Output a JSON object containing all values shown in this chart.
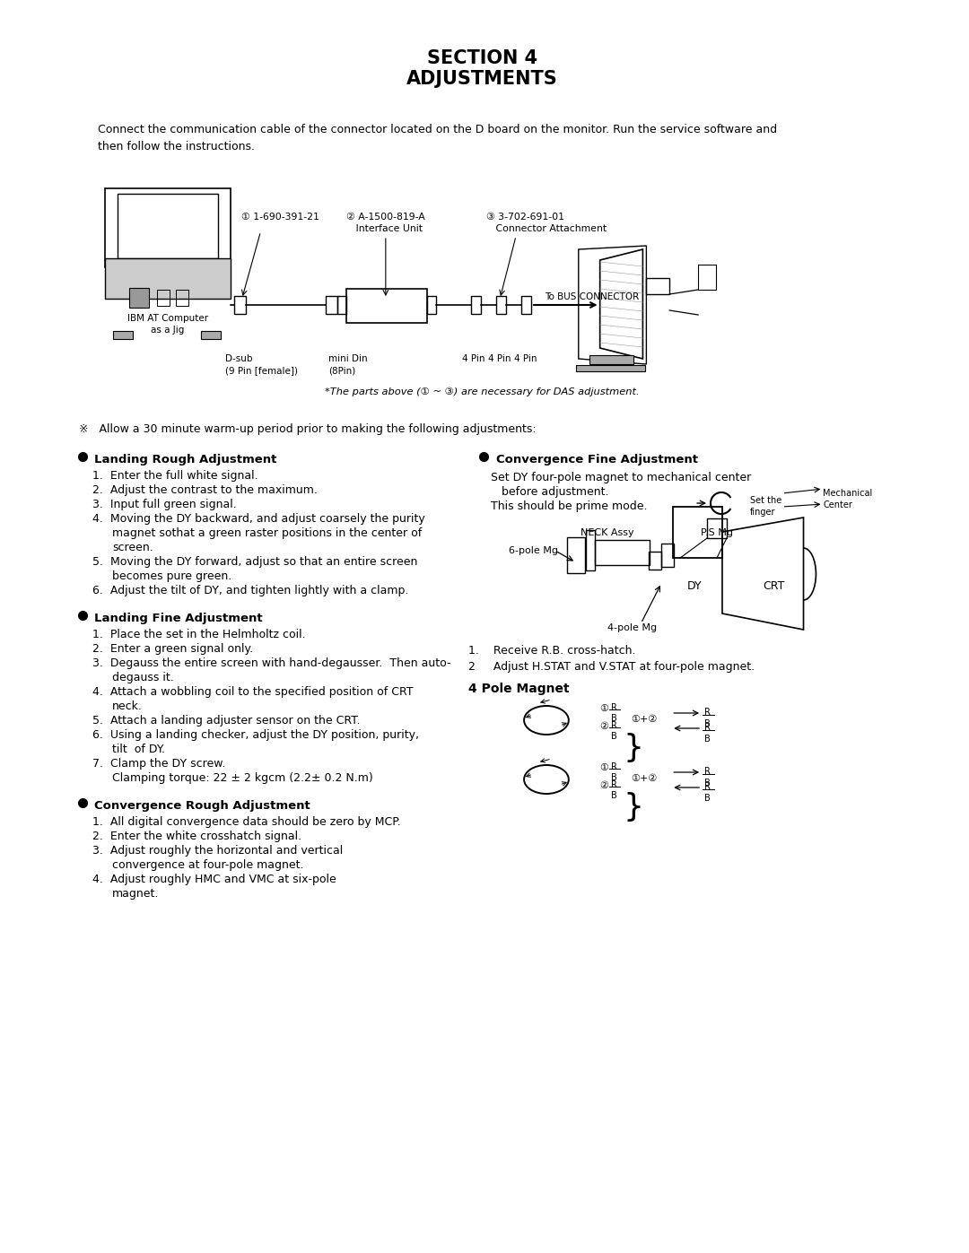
{
  "title_line1": "SECTION 4",
  "title_line2": "ADJUSTMENTS",
  "bg_color": "#ffffff",
  "intro_text": "Connect the communication cable of the connector located on the D board on the monitor. Run the service software and\nthen follow the instructions.",
  "parts_note": "*The parts above (① ~ ③) are necessary for DAS adjustment.",
  "warmup_note": "※   Allow a 30 minute warm-up period prior to making the following adjustments:",
  "section1_title": "Landing Rough Adjustment",
  "section1_items": [
    "Enter the full white signal.",
    "Adjust the contrast to the maximum.",
    "Input full green signal.",
    "Moving the DY backward, and adjust coarsely the purity\n    magnet sothat a green raster positions in the center of\n    screen.",
    "Moving the DY forward, adjust so that an entire screen\n    becomes pure green.",
    "Adjust the tilt of DY, and tighten lightly with a clamp."
  ],
  "section2_title": "Landing Fine Adjustment",
  "section2_items": [
    "Place the set in the Helmholtz coil.",
    "Enter a green signal only.",
    "Degauss the entire screen with hand-degausser.  Then auto-\n    degauss it.",
    "Attach a wobbling coil to the specified position of CRT\n    neck.",
    "Attach a landing adjuster sensor on the CRT.",
    "Using a landing checker, adjust the DY position, purity,\n    tilt  of DY.",
    "Clamp the DY screw.\n    Clamping torque: 22 ± 2 kgcm (2.2± 0.2 N.m)"
  ],
  "section3_title": "Convergence Rough Adjustment",
  "section3_items": [
    "All digital convergence data should be zero by MCP.",
    "Enter the white crosshatch signal.",
    "Adjust roughly the horizontal and vertical\n    convergence at four-pole magnet.",
    "Adjust roughly HMC and VMC at six-pole\n    magnet."
  ],
  "section4_title": "Convergence Fine Adjustment",
  "section4_text1": "Set DY four-pole magnet to mechanical center",
  "section4_text2": "before adjustment.",
  "section4_text3": "This should be prime mode.",
  "section4_item1": "Receive R.B. cross-hatch.",
  "section4_item2": "Adjust H.STAT and V.STAT at four-pole magnet.",
  "pole_magnet_title": "4 Pole Magnet",
  "label_ibm": "IBM AT Computer\nas a Jig",
  "label_dsub": "D-sub\n(9 Pin [female])",
  "label_minidin": "mini Din\n(8Pin)",
  "label_4pin": "4 Pin",
  "label_bus": "To BUS CONNECTOR",
  "label_neck": "NECK Assy",
  "label_psmg": "P.S Mg",
  "label_6pole": "6-pole Mg",
  "label_4pole": "4-pole Mg",
  "label_dy": "DY",
  "label_crt": "CRT",
  "label_set_finger": "Set the\nfinger",
  "label_mech_center": "Mechanical\nCenter",
  "label_1": "① 1-690-391-21",
  "label_2": "② A-1500-819-A\n   Interface Unit",
  "label_3": "③ 3-702-691-01\n   Connector Attachment"
}
